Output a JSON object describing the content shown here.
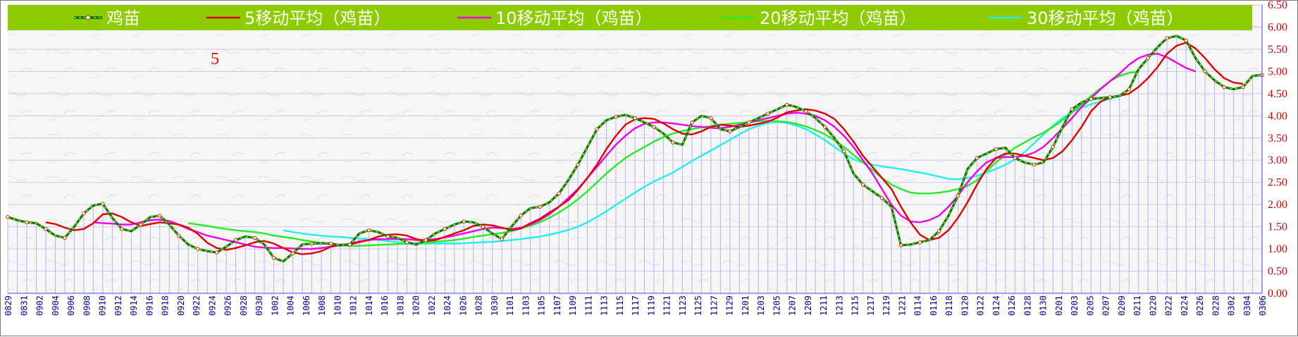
{
  "chart_data": {
    "type": "line",
    "title": "",
    "xlabel": "",
    "ylabel": "",
    "ylim": [
      0,
      6.5
    ],
    "y_ticks": [
      "0.00",
      "0.50",
      "1.00",
      "1.50",
      "2.00",
      "2.50",
      "3.00",
      "3.50",
      "4.00",
      "4.50",
      "5.00",
      "5.50",
      "6.00",
      "6.50"
    ],
    "annotation": "5",
    "legend_position": "top",
    "x_tick_labels": [
      "0829",
      "0831",
      "0902",
      "0904",
      "0906",
      "0908",
      "0910",
      "0912",
      "0914",
      "0916",
      "0918",
      "0920",
      "0922",
      "0924",
      "0926",
      "0928",
      "0930",
      "1002",
      "1004",
      "1006",
      "1008",
      "1010",
      "1012",
      "1014",
      "1016",
      "1018",
      "1020",
      "1022",
      "1024",
      "1026",
      "1028",
      "1030",
      "1101",
      "1103",
      "1105",
      "1107",
      "1109",
      "1111",
      "1113",
      "1115",
      "1117",
      "1119",
      "1121",
      "1123",
      "1125",
      "1127",
      "1129",
      "1201",
      "1203",
      "1205",
      "1207",
      "1209",
      "1211",
      "1213",
      "1215",
      "1217",
      "1219",
      "1221",
      "0114",
      "0116",
      "0118",
      "0120",
      "0122",
      "0124",
      "0126",
      "0128",
      "0130",
      "0201",
      "0203",
      "0205",
      "0207",
      "0209",
      "0211",
      "0220",
      "0222",
      "0224",
      "0226",
      "0228",
      "0302",
      "0304",
      "0306"
    ],
    "series": [
      {
        "name": "鸡苗",
        "color": "#008000",
        "style": "dashed-markers",
        "values": [
          1.72,
          1.65,
          1.6,
          1.58,
          1.45,
          1.3,
          1.25,
          1.5,
          1.8,
          1.98,
          2.02,
          1.7,
          1.45,
          1.4,
          1.55,
          1.72,
          1.75,
          1.55,
          1.3,
          1.1,
          1.0,
          0.95,
          0.92,
          1.05,
          1.2,
          1.28,
          1.25,
          1.1,
          0.8,
          0.72,
          0.9,
          1.1,
          1.12,
          1.13,
          1.12,
          1.08,
          1.1,
          1.35,
          1.42,
          1.38,
          1.28,
          1.25,
          1.15,
          1.1,
          1.2,
          1.35,
          1.45,
          1.55,
          1.62,
          1.6,
          1.5,
          1.35,
          1.22,
          1.5,
          1.75,
          1.92,
          1.95,
          2.05,
          2.25,
          2.55,
          2.9,
          3.3,
          3.7,
          3.9,
          3.98,
          4.02,
          3.95,
          3.85,
          3.75,
          3.6,
          3.4,
          3.35,
          3.85,
          4.0,
          3.95,
          3.7,
          3.65,
          3.75,
          3.85,
          3.95,
          4.05,
          4.15,
          4.25,
          4.2,
          4.1,
          3.95,
          3.75,
          3.5,
          3.2,
          2.7,
          2.45,
          2.3,
          2.15,
          1.95,
          1.08,
          1.1,
          1.15,
          1.2,
          1.4,
          1.75,
          2.2,
          2.8,
          3.05,
          3.15,
          3.25,
          3.28,
          3.05,
          2.95,
          2.9,
          2.95,
          3.3,
          3.75,
          4.15,
          4.3,
          4.38,
          4.4,
          4.42,
          4.45,
          4.6,
          5.05,
          5.3,
          5.55,
          5.75,
          5.8,
          5.7,
          5.3,
          5.0,
          4.8,
          4.65,
          4.6,
          4.65,
          4.9,
          4.92
        ]
      },
      {
        "name": "5移动平均（鸡苗）",
        "color": "#e00000",
        "style": "solid",
        "values": [
          null,
          null,
          null,
          null,
          1.6,
          1.56,
          1.48,
          1.42,
          1.45,
          1.58,
          1.78,
          1.8,
          1.72,
          1.6,
          1.52,
          1.56,
          1.6,
          1.58,
          1.55,
          1.48,
          1.34,
          1.14,
          1.02,
          0.98,
          1.02,
          1.08,
          1.15,
          1.18,
          1.12,
          1.02,
          0.92,
          0.88,
          0.9,
          0.95,
          1.05,
          1.1,
          1.1,
          1.15,
          1.2,
          1.28,
          1.32,
          1.33,
          1.3,
          1.22,
          1.18,
          1.2,
          1.27,
          1.35,
          1.42,
          1.52,
          1.55,
          1.53,
          1.48,
          1.42,
          1.46,
          1.58,
          1.68,
          1.82,
          1.95,
          2.1,
          2.33,
          2.6,
          2.9,
          3.25,
          3.55,
          3.8,
          3.92,
          3.95,
          3.93,
          3.83,
          3.7,
          3.6,
          3.58,
          3.65,
          3.75,
          3.8,
          3.78,
          3.75,
          3.78,
          3.82,
          3.87,
          3.96,
          4.08,
          4.12,
          4.15,
          4.12,
          4.05,
          3.93,
          3.7,
          3.42,
          3.1,
          2.85,
          2.6,
          2.35,
          1.95,
          1.6,
          1.32,
          1.2,
          1.25,
          1.42,
          1.7,
          2.05,
          2.45,
          2.8,
          3.05,
          3.15,
          3.15,
          3.1,
          3.05,
          3.0,
          3.05,
          3.2,
          3.45,
          3.75,
          4.1,
          4.32,
          4.42,
          4.45,
          4.5,
          4.65,
          4.85,
          5.1,
          5.4,
          5.58,
          5.65,
          5.52,
          5.3,
          5.05,
          4.85,
          4.75,
          4.72
        ]
      },
      {
        "name": "10移动平均（鸡苗）",
        "color": "#ee00ee",
        "style": "solid",
        "values": [
          null,
          null,
          null,
          null,
          null,
          null,
          null,
          null,
          null,
          1.6,
          1.58,
          1.57,
          1.55,
          1.55,
          1.6,
          1.65,
          1.66,
          1.63,
          1.55,
          1.45,
          1.38,
          1.3,
          1.25,
          1.2,
          1.15,
          1.1,
          1.05,
          1.03,
          1.02,
          1.02,
          1.01,
          1.0,
          1.0,
          1.02,
          1.05,
          1.08,
          1.12,
          1.17,
          1.2,
          1.22,
          1.22,
          1.22,
          1.22,
          1.2,
          1.2,
          1.22,
          1.26,
          1.3,
          1.35,
          1.4,
          1.45,
          1.48,
          1.47,
          1.45,
          1.48,
          1.55,
          1.65,
          1.78,
          1.95,
          2.15,
          2.35,
          2.6,
          2.85,
          3.1,
          3.35,
          3.55,
          3.72,
          3.82,
          3.85,
          3.85,
          3.83,
          3.8,
          3.77,
          3.75,
          3.73,
          3.72,
          3.75,
          3.8,
          3.85,
          3.9,
          3.95,
          4.0,
          4.05,
          4.07,
          4.05,
          4.0,
          3.9,
          3.75,
          3.55,
          3.3,
          3.0,
          2.7,
          2.35,
          2.0,
          1.75,
          1.62,
          1.6,
          1.65,
          1.75,
          1.95,
          2.2,
          2.5,
          2.75,
          2.95,
          3.05,
          3.07,
          3.07,
          3.1,
          3.17,
          3.3,
          3.5,
          3.72,
          3.95,
          4.2,
          4.4,
          4.6,
          4.78,
          4.95,
          5.15,
          5.3,
          5.38,
          5.4,
          5.32,
          5.2,
          5.08,
          5.0
        ]
      },
      {
        "name": "20移动平均（鸡苗）",
        "color": "#22ee22",
        "style": "solid",
        "values": [
          null,
          null,
          null,
          null,
          null,
          null,
          null,
          null,
          null,
          null,
          null,
          null,
          null,
          null,
          null,
          null,
          null,
          null,
          null,
          1.58,
          1.55,
          1.52,
          1.48,
          1.45,
          1.42,
          1.4,
          1.38,
          1.35,
          1.3,
          1.27,
          1.24,
          1.2,
          1.17,
          1.13,
          1.1,
          1.08,
          1.07,
          1.07,
          1.08,
          1.09,
          1.1,
          1.11,
          1.12,
          1.13,
          1.14,
          1.16,
          1.18,
          1.2,
          1.23,
          1.27,
          1.3,
          1.33,
          1.36,
          1.4,
          1.46,
          1.52,
          1.6,
          1.7,
          1.82,
          1.96,
          2.12,
          2.3,
          2.5,
          2.7,
          2.88,
          3.05,
          3.18,
          3.3,
          3.42,
          3.52,
          3.6,
          3.66,
          3.7,
          3.74,
          3.77,
          3.8,
          3.82,
          3.84,
          3.86,
          3.88,
          3.89,
          3.88,
          3.86,
          3.82,
          3.76,
          3.68,
          3.58,
          3.45,
          3.3,
          3.12,
          2.95,
          2.78,
          2.6,
          2.45,
          2.35,
          2.27,
          2.25,
          2.25,
          2.27,
          2.3,
          2.35,
          2.42,
          2.55,
          2.75,
          2.95,
          3.12,
          3.28,
          3.4,
          3.52,
          3.62,
          3.75,
          3.9,
          4.08,
          4.25,
          4.45,
          4.62,
          4.78,
          4.9,
          4.97,
          5.0
        ]
      },
      {
        "name": "30移动平均（鸡苗）",
        "color": "#22eeee",
        "style": "solid",
        "values": [
          null,
          null,
          null,
          null,
          null,
          null,
          null,
          null,
          null,
          null,
          null,
          null,
          null,
          null,
          null,
          null,
          null,
          null,
          null,
          null,
          null,
          null,
          null,
          null,
          null,
          null,
          null,
          null,
          null,
          1.42,
          1.38,
          1.35,
          1.32,
          1.3,
          1.28,
          1.27,
          1.25,
          1.23,
          1.22,
          1.2,
          1.18,
          1.15,
          1.13,
          1.12,
          1.12,
          1.12,
          1.12,
          1.12,
          1.13,
          1.14,
          1.15,
          1.16,
          1.18,
          1.2,
          1.22,
          1.25,
          1.28,
          1.32,
          1.37,
          1.43,
          1.5,
          1.6,
          1.72,
          1.85,
          1.99,
          2.13,
          2.27,
          2.4,
          2.52,
          2.62,
          2.72,
          2.85,
          2.98,
          3.1,
          3.22,
          3.34,
          3.46,
          3.58,
          3.7,
          3.78,
          3.84,
          3.86,
          3.84,
          3.78,
          3.7,
          3.58,
          3.45,
          3.3,
          3.15,
          3.02,
          2.95,
          2.9,
          2.86,
          2.83,
          2.8,
          2.76,
          2.72,
          2.68,
          2.63,
          2.58,
          2.57,
          2.6,
          2.65,
          2.72,
          2.8,
          2.9,
          3.02,
          3.18,
          3.38,
          3.58,
          3.78,
          3.95,
          4.08,
          4.18,
          4.26,
          4.32,
          4.38,
          4.45,
          4.5
        ]
      }
    ]
  }
}
